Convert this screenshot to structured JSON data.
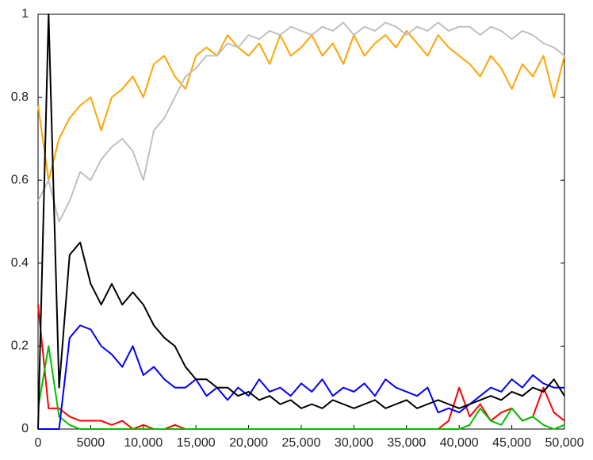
{
  "chart_data": {
    "type": "line",
    "x": [
      0,
      1000,
      2000,
      3000,
      4000,
      5000,
      6000,
      7000,
      8000,
      9000,
      10000,
      11000,
      12000,
      13000,
      14000,
      15000,
      16000,
      17000,
      18000,
      19000,
      20000,
      21000,
      22000,
      23000,
      24000,
      25000,
      26000,
      27000,
      28000,
      29000,
      30000,
      31000,
      32000,
      33000,
      34000,
      35000,
      36000,
      37000,
      38000,
      39000,
      40000,
      41000,
      42000,
      43000,
      44000,
      45000,
      46000,
      47000,
      48000,
      49000,
      50000
    ],
    "series": [
      {
        "color": "#ffa500",
        "values": [
          0.78,
          0.6,
          0.7,
          0.75,
          0.78,
          0.8,
          0.72,
          0.8,
          0.82,
          0.85,
          0.8,
          0.88,
          0.9,
          0.85,
          0.82,
          0.9,
          0.92,
          0.9,
          0.95,
          0.92,
          0.9,
          0.93,
          0.88,
          0.95,
          0.9,
          0.92,
          0.95,
          0.9,
          0.93,
          0.88,
          0.95,
          0.9,
          0.93,
          0.95,
          0.92,
          0.96,
          0.93,
          0.9,
          0.95,
          0.92,
          0.9,
          0.88,
          0.85,
          0.9,
          0.87,
          0.82,
          0.88,
          0.85,
          0.9,
          0.8,
          0.9
        ]
      },
      {
        "color": "#c0c0c0",
        "values": [
          0.55,
          0.6,
          0.5,
          0.55,
          0.62,
          0.6,
          0.65,
          0.68,
          0.7,
          0.67,
          0.6,
          0.72,
          0.75,
          0.8,
          0.85,
          0.87,
          0.9,
          0.9,
          0.93,
          0.92,
          0.95,
          0.94,
          0.96,
          0.95,
          0.97,
          0.96,
          0.95,
          0.97,
          0.96,
          0.98,
          0.95,
          0.97,
          0.96,
          0.98,
          0.97,
          0.95,
          0.97,
          0.96,
          0.98,
          0.96,
          0.97,
          0.97,
          0.95,
          0.97,
          0.96,
          0.94,
          0.96,
          0.95,
          0.93,
          0.92,
          0.9
        ]
      },
      {
        "color": "#ff0000",
        "values": [
          0.3,
          0.05,
          0.05,
          0.03,
          0.02,
          0.02,
          0.02,
          0.01,
          0.02,
          0,
          0.01,
          0,
          0,
          0.01,
          0,
          0,
          0,
          0,
          0,
          0,
          0,
          0,
          0,
          0,
          0,
          0,
          0,
          0,
          0,
          0,
          0,
          0,
          0,
          0,
          0,
          0,
          0,
          0,
          0,
          0.02,
          0.1,
          0.03,
          0.06,
          0.02,
          0.04,
          0.05,
          0.02,
          0.03,
          0.1,
          0.04,
          0.02
        ]
      },
      {
        "color": "#00c000",
        "values": [
          0.05,
          0.2,
          0.03,
          0.01,
          0,
          0,
          0,
          0,
          0,
          0,
          0,
          0,
          0,
          0,
          0,
          0,
          0,
          0,
          0,
          0,
          0,
          0,
          0,
          0,
          0,
          0,
          0,
          0,
          0,
          0,
          0,
          0,
          0,
          0,
          0,
          0,
          0,
          0,
          0,
          0,
          0,
          0.01,
          0.05,
          0.02,
          0.01,
          0.05,
          0.02,
          0.03,
          0.01,
          0,
          0.01
        ]
      },
      {
        "color": "#0000ff",
        "values": [
          0,
          0,
          0,
          0.22,
          0.25,
          0.24,
          0.2,
          0.18,
          0.15,
          0.2,
          0.13,
          0.15,
          0.12,
          0.1,
          0.1,
          0.12,
          0.08,
          0.1,
          0.07,
          0.1,
          0.08,
          0.12,
          0.09,
          0.1,
          0.08,
          0.11,
          0.09,
          0.12,
          0.08,
          0.1,
          0.09,
          0.11,
          0.08,
          0.12,
          0.1,
          0.09,
          0.08,
          0.1,
          0.04,
          0.05,
          0.04,
          0.06,
          0.08,
          0.1,
          0.09,
          0.12,
          0.1,
          0.13,
          0.11,
          0.1,
          0.1
        ]
      },
      {
        "color": "#000000",
        "values": [
          0,
          1,
          0.1,
          0.42,
          0.45,
          0.35,
          0.3,
          0.35,
          0.3,
          0.33,
          0.3,
          0.25,
          0.22,
          0.2,
          0.15,
          0.12,
          0.12,
          0.1,
          0.1,
          0.08,
          0.09,
          0.07,
          0.08,
          0.06,
          0.07,
          0.05,
          0.06,
          0.05,
          0.07,
          0.06,
          0.05,
          0.06,
          0.07,
          0.05,
          0.06,
          0.07,
          0.05,
          0.06,
          0.07,
          0.06,
          0.05,
          0.06,
          0.07,
          0.08,
          0.07,
          0.09,
          0.08,
          0.1,
          0.09,
          0.12,
          0.08
        ]
      }
    ],
    "xlim": [
      0,
      50000
    ],
    "ylim": [
      0,
      1
    ],
    "xticks": [
      0,
      5000,
      {
        "value": 10000,
        "label": "10,000"
      },
      {
        "value": 15000,
        "label": "15,000"
      },
      {
        "value": 20000,
        "label": "20,000"
      },
      {
        "value": 25000,
        "label": "25,000"
      },
      {
        "value": 30000,
        "label": "30,000"
      },
      {
        "value": 35000,
        "label": "35,000"
      },
      {
        "value": 40000,
        "label": "40,000"
      },
      {
        "value": 45000,
        "label": "45,000"
      },
      {
        "value": 50000,
        "label": "50,000"
      }
    ],
    "yticks": [
      0,
      0.2,
      0.4,
      0.6,
      0.8,
      1
    ]
  }
}
